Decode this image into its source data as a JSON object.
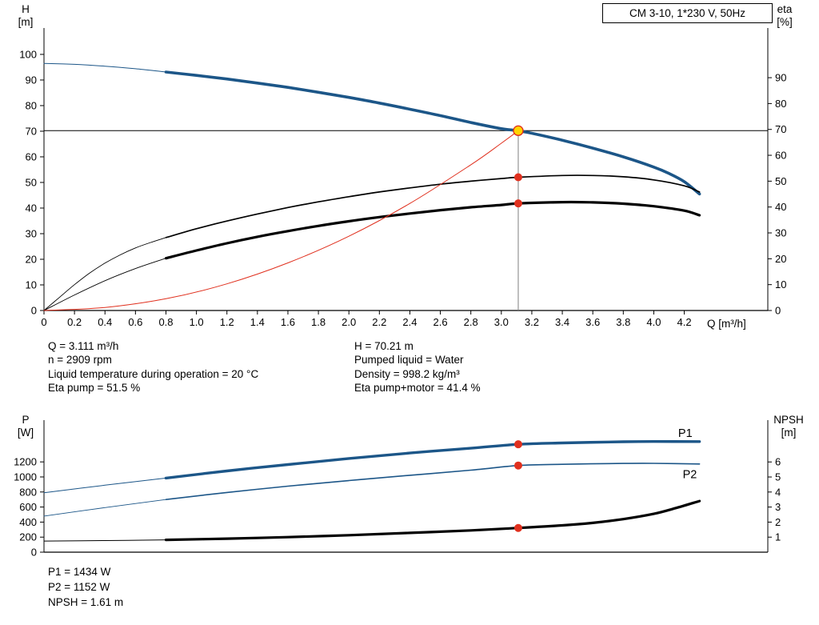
{
  "title_box": {
    "label": "CM 3-10, 1*230 V, 50Hz"
  },
  "info_top": {
    "left": [
      "Q = 3.111 m³/h",
      "n = 2909 rpm",
      "Liquid temperature during operation = 20 °C",
      "Eta pump = 51.5 %"
    ],
    "right": [
      "H = 70.21 m",
      "Pumped liquid = Water",
      "Density = 998.2 kg/m³",
      "Eta pump+motor = 41.4 %"
    ]
  },
  "info_bottom": [
    "P1 = 1434 W",
    "P2 = 1152 W",
    "NPSH = 1.61 m"
  ],
  "chart_data": [
    {
      "name": "qh-eta-chart",
      "type": "line",
      "x_axis": {
        "label": "Q [m³/h]",
        "range": [
          0,
          4.748
        ],
        "show_tick_labels": true,
        "ticks": [
          0,
          0.2,
          0.4,
          0.6,
          0.8,
          1,
          1.2,
          1.4,
          1.6,
          1.8,
          2,
          2.2,
          2.4,
          2.6,
          2.8,
          3,
          3.2,
          3.4,
          3.6,
          3.8,
          4,
          4.2
        ],
        "tick_labels": [
          "0",
          "0.2",
          "0.4",
          "0.6",
          "0.8",
          "1.0",
          "1.2",
          "1.4",
          "1.6",
          "1.8",
          "2.0",
          "2.2",
          "2.4",
          "2.6",
          "2.8",
          "3.0",
          "3.2",
          "3.4",
          "3.6",
          "3.8",
          "4.0",
          "4.2"
        ]
      },
      "y_left": {
        "label_lines": [
          "H",
          "[m]"
        ],
        "range": [
          0,
          110.3
        ],
        "ticks": [
          0,
          10,
          20,
          30,
          40,
          50,
          60,
          70,
          80,
          90,
          100
        ],
        "tick_labels": [
          "0",
          "10",
          "20",
          "30",
          "40",
          "50",
          "60",
          "70",
          "80",
          "90",
          "100"
        ]
      },
      "y_right": {
        "label_lines": [
          "eta",
          "[%]"
        ],
        "range": [
          0,
          109.2
        ],
        "ticks": [
          0,
          10,
          20,
          30,
          40,
          50,
          60,
          70,
          80,
          90
        ],
        "tick_labels": [
          "0",
          "10",
          "20",
          "30",
          "40",
          "50",
          "60",
          "70",
          "80",
          "90"
        ]
      },
      "duty_point": {
        "Q": 3.111,
        "H": 70.21,
        "eta_pump": 51.5,
        "eta_pump_motor": 41.4
      },
      "helpers": {
        "h_line": {
          "value": 70.21,
          "axis": "left",
          "color": "#000000",
          "width": 1
        },
        "v_line": {
          "q": 3.111,
          "to_value": 70.21,
          "axis": "left",
          "color": "#808080",
          "width": 1
        }
      },
      "series": [
        {
          "name": "qh-curve-lead",
          "axis": "left",
          "color": "#1c5688",
          "width": 1,
          "points": [
            [
              0,
              96.5
            ],
            [
              0.2,
              96.1
            ],
            [
              0.4,
              95.4
            ],
            [
              0.6,
              94.4
            ],
            [
              0.8,
              93.1
            ]
          ]
        },
        {
          "name": "qh-curve",
          "axis": "left",
          "color": "#1c5688",
          "width": 3.6,
          "points": [
            [
              0.8,
              93.1
            ],
            [
              1,
              91.8
            ],
            [
              1.2,
              90.4
            ],
            [
              1.4,
              88.8
            ],
            [
              1.6,
              87.1
            ],
            [
              1.8,
              85.2
            ],
            [
              2,
              83.2
            ],
            [
              2.2,
              81
            ],
            [
              2.4,
              78.6
            ],
            [
              2.6,
              76.1
            ],
            [
              2.8,
              73.4
            ],
            [
              3,
              71
            ],
            [
              3.111,
              70.21
            ],
            [
              3.2,
              69.2
            ],
            [
              3.4,
              66.5
            ],
            [
              3.6,
              63.4
            ],
            [
              3.8,
              60
            ],
            [
              4,
              56
            ],
            [
              4.1,
              53.5
            ],
            [
              4.2,
              50.3
            ],
            [
              4.3,
              45.5
            ]
          ]
        },
        {
          "name": "eta-pump-curve-lead",
          "axis": "right",
          "color": "#000000",
          "width": 0.9,
          "points": [
            [
              0,
              0
            ],
            [
              0.1,
              5
            ],
            [
              0.2,
              10
            ],
            [
              0.3,
              14.5
            ],
            [
              0.4,
              18.3
            ],
            [
              0.5,
              21.5
            ],
            [
              0.6,
              24.2
            ],
            [
              0.7,
              26.3
            ],
            [
              0.8,
              28.2
            ]
          ]
        },
        {
          "name": "eta-pump-curve",
          "axis": "right",
          "color": "#000000",
          "width": 1.7,
          "points": [
            [
              0.8,
              28.2
            ],
            [
              1,
              31.6
            ],
            [
              1.2,
              34.6
            ],
            [
              1.4,
              37.3
            ],
            [
              1.6,
              39.8
            ],
            [
              1.8,
              42
            ],
            [
              2,
              44
            ],
            [
              2.2,
              45.8
            ],
            [
              2.4,
              47.4
            ],
            [
              2.6,
              48.8
            ],
            [
              2.8,
              50
            ],
            [
              3,
              51
            ],
            [
              3.111,
              51.5
            ],
            [
              3.4,
              52.2
            ],
            [
              3.6,
              52.2
            ],
            [
              3.8,
              51.7
            ],
            [
              4,
              50.5
            ],
            [
              4.2,
              48.2
            ],
            [
              4.3,
              45.8
            ]
          ]
        },
        {
          "name": "eta-pump-motor-curve-lead",
          "axis": "right",
          "color": "#000000",
          "width": 0.9,
          "points": [
            [
              0,
              0
            ],
            [
              0.2,
              6
            ],
            [
              0.4,
              11.5
            ],
            [
              0.6,
              16.2
            ],
            [
              0.8,
              20.2
            ]
          ]
        },
        {
          "name": "eta-pump-motor-curve",
          "axis": "right",
          "color": "#000000",
          "width": 3.2,
          "points": [
            [
              0.8,
              20.2
            ],
            [
              1,
              23.2
            ],
            [
              1.2,
              26
            ],
            [
              1.4,
              28.5
            ],
            [
              1.6,
              30.7
            ],
            [
              1.8,
              32.7
            ],
            [
              2,
              34.5
            ],
            [
              2.2,
              36.1
            ],
            [
              2.4,
              37.5
            ],
            [
              2.6,
              38.8
            ],
            [
              2.8,
              39.9
            ],
            [
              3,
              40.8
            ],
            [
              3.111,
              41.4
            ],
            [
              3.4,
              41.9
            ],
            [
              3.6,
              41.8
            ],
            [
              3.8,
              41.3
            ],
            [
              4,
              40.3
            ],
            [
              4.2,
              38.6
            ],
            [
              4.3,
              36.8
            ]
          ]
        },
        {
          "name": "system-curve",
          "axis": "left",
          "color": "#e0301e",
          "width": 1,
          "points": [
            [
              0,
              0
            ],
            [
              0.4,
              1.2
            ],
            [
              0.8,
              4.6
            ],
            [
              1.2,
              10.4
            ],
            [
              1.6,
              18.6
            ],
            [
              2,
              29
            ],
            [
              2.4,
              41.8
            ],
            [
              2.8,
              56.9
            ],
            [
              3,
              65.3
            ],
            [
              3.111,
              70.21
            ]
          ]
        }
      ],
      "markers": [
        {
          "name": "duty-point-marker",
          "q": 3.111,
          "v": 70.21,
          "axis": "left",
          "r": 6,
          "fill": "#ffd400",
          "stroke": "#e0301e"
        },
        {
          "name": "eta-pump-marker",
          "q": 3.111,
          "v": 51.5,
          "axis": "right",
          "r": 5,
          "fill": "#e0301e"
        },
        {
          "name": "eta-pump-motor-marker",
          "q": 3.111,
          "v": 41.4,
          "axis": "right",
          "r": 5,
          "fill": "#e0301e"
        }
      ],
      "series_labels": []
    },
    {
      "name": "power-npsh-chart",
      "type": "line",
      "x_axis": {
        "label": "",
        "range": [
          0,
          4.748
        ],
        "show_tick_labels": false,
        "ticks": [],
        "tick_labels": []
      },
      "y_left": {
        "label_lines": [
          "P",
          "[W]"
        ],
        "range": [
          0,
          1755
        ],
        "ticks": [
          0,
          200,
          400,
          600,
          800,
          1000,
          1200
        ],
        "tick_labels": [
          "0",
          "200",
          "400",
          "600",
          "800",
          "1000",
          "1200"
        ]
      },
      "y_right": {
        "label_lines": [
          "NPSH",
          "[m]"
        ],
        "range": [
          0,
          8.78
        ],
        "ticks": [
          1,
          2,
          3,
          4,
          5,
          6
        ],
        "tick_labels": [
          "1",
          "2",
          "3",
          "4",
          "5",
          "6"
        ]
      },
      "duty_point": {
        "Q": 3.111,
        "P1": 1434,
        "P2": 1152,
        "NPSH": 1.61
      },
      "helpers": null,
      "series": [
        {
          "name": "p1-curve-lead",
          "axis": "left",
          "color": "#1c5688",
          "width": 1,
          "points": [
            [
              0,
              790
            ],
            [
              0.4,
              890
            ],
            [
              0.8,
              985
            ]
          ]
        },
        {
          "name": "p1-curve",
          "axis": "left",
          "color": "#1c5688",
          "width": 3.4,
          "points": [
            [
              0.8,
              985
            ],
            [
              1.2,
              1080
            ],
            [
              1.6,
              1165
            ],
            [
              2,
              1245
            ],
            [
              2.4,
              1318
            ],
            [
              2.8,
              1382
            ],
            [
              3.111,
              1434
            ],
            [
              3.4,
              1452
            ],
            [
              3.8,
              1468
            ],
            [
              4,
              1471
            ],
            [
              4.3,
              1470
            ]
          ]
        },
        {
          "name": "p2-curve-lead",
          "axis": "left",
          "color": "#1c5688",
          "width": 0.9,
          "points": [
            [
              0,
              480
            ],
            [
              0.4,
              592
            ],
            [
              0.8,
              700
            ]
          ]
        },
        {
          "name": "p2-curve",
          "axis": "left",
          "color": "#1c5688",
          "width": 1.6,
          "points": [
            [
              0.8,
              700
            ],
            [
              1.2,
              793
            ],
            [
              1.6,
              877
            ],
            [
              2,
              952
            ],
            [
              2.4,
              1022
            ],
            [
              2.8,
              1090
            ],
            [
              3.111,
              1152
            ],
            [
              3.4,
              1168
            ],
            [
              3.8,
              1180
            ],
            [
              4,
              1181
            ],
            [
              4.3,
              1172
            ]
          ]
        },
        {
          "name": "npsh-curve-lead",
          "axis": "right",
          "color": "#000000",
          "width": 1,
          "points": [
            [
              0,
              0.74
            ],
            [
              0.4,
              0.77
            ],
            [
              0.8,
              0.82
            ]
          ]
        },
        {
          "name": "npsh-curve",
          "axis": "right",
          "color": "#000000",
          "width": 3.2,
          "points": [
            [
              0.8,
              0.82
            ],
            [
              1.2,
              0.9
            ],
            [
              1.6,
              1
            ],
            [
              2,
              1.13
            ],
            [
              2.4,
              1.28
            ],
            [
              2.8,
              1.45
            ],
            [
              3.111,
              1.61
            ],
            [
              3.4,
              1.78
            ],
            [
              3.6,
              1.95
            ],
            [
              3.8,
              2.2
            ],
            [
              4,
              2.55
            ],
            [
              4.15,
              2.95
            ],
            [
              4.3,
              3.4
            ]
          ]
        }
      ],
      "markers": [
        {
          "name": "p1-marker",
          "q": 3.111,
          "v": 1434,
          "axis": "left",
          "r": 5,
          "fill": "#e0301e"
        },
        {
          "name": "p2-marker",
          "q": 3.111,
          "v": 1152,
          "axis": "left",
          "r": 5,
          "fill": "#e0301e"
        },
        {
          "name": "npsh-marker",
          "q": 3.111,
          "v": 1.61,
          "axis": "right",
          "r": 5,
          "fill": "#e0301e"
        }
      ],
      "series_labels": [
        {
          "text": "P1",
          "q": 4.16,
          "v": 1530,
          "axis": "left",
          "color": "#1c5688"
        },
        {
          "text": "P2",
          "q": 4.19,
          "v": 985,
          "axis": "left",
          "color": "#1c5688"
        }
      ]
    }
  ]
}
